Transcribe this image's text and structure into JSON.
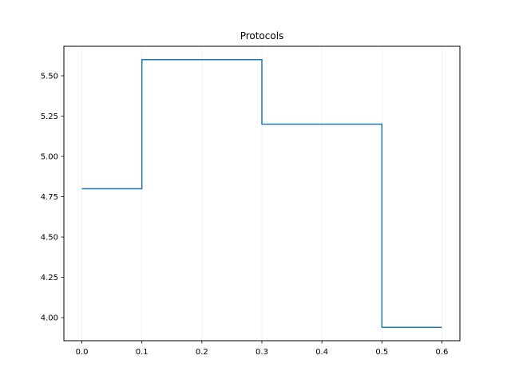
{
  "chart_data": {
    "type": "line",
    "drawstyle": "steps-post",
    "title": "Protocols",
    "xlabel": "",
    "ylabel": "",
    "x": [
      0.0,
      0.1,
      0.3,
      0.5,
      0.6
    ],
    "series": [
      {
        "values": [
          4.8,
          5.6,
          5.2,
          3.94,
          3.94
        ],
        "color": "#1f77b4"
      }
    ],
    "xlim": [
      -0.03,
      0.63
    ],
    "ylim": [
      3.857,
      5.683
    ],
    "xticks": [
      "0.0",
      "0.1",
      "0.2",
      "0.3",
      "0.4",
      "0.5",
      "0.6"
    ],
    "yticks": [
      "4.00",
      "4.25",
      "4.50",
      "4.75",
      "5.00",
      "5.25",
      "5.50"
    ],
    "grid": "x-only",
    "legend": "none"
  }
}
